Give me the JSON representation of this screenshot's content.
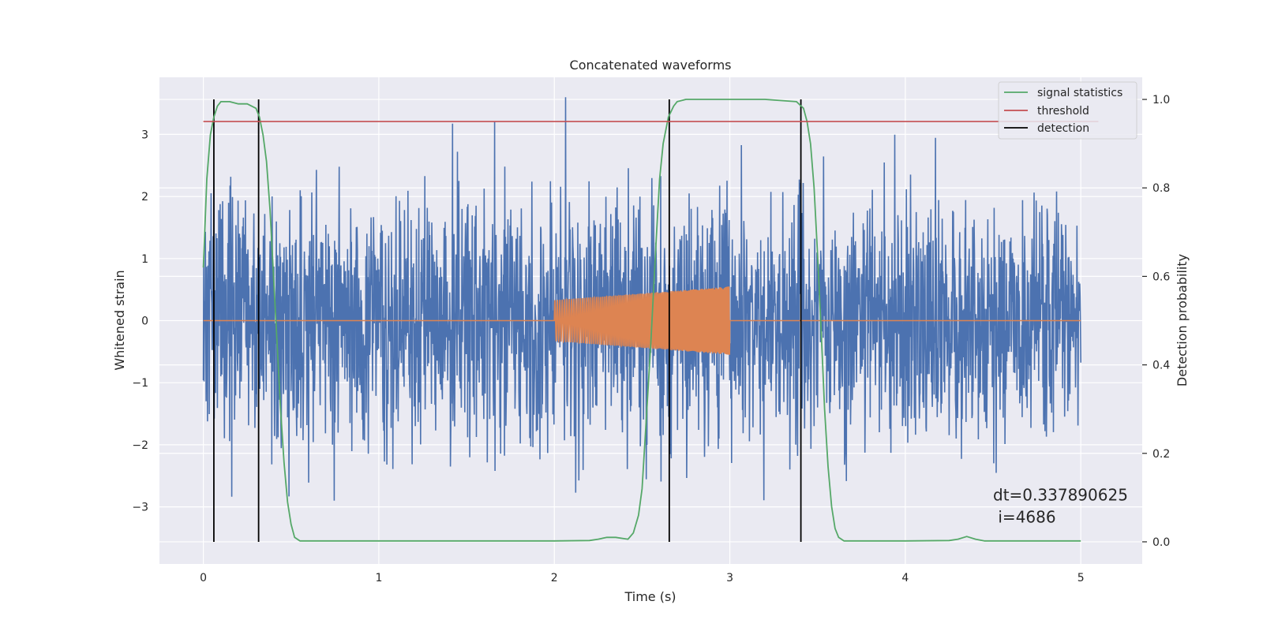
{
  "chart_data": {
    "type": "line",
    "title": "Concatenated waveforms",
    "xlabel": "Time (s)",
    "ylabel_left": "Whitened strain",
    "ylabel_right": "Detection probability",
    "xlim": [
      -0.25,
      5.35
    ],
    "ylim_left": [
      -3.92,
      3.92
    ],
    "ylim_right": [
      -0.05,
      1.05
    ],
    "xticks": [
      0,
      1,
      2,
      3,
      4,
      5
    ],
    "xtick_labels": [
      "0",
      "1",
      "2",
      "3",
      "4",
      "5"
    ],
    "yticks_left": [
      -3,
      -2,
      -1,
      0,
      1,
      2,
      3
    ],
    "ytick_labels_left": [
      "−3",
      "−2",
      "−1",
      "0",
      "1",
      "2",
      "3"
    ],
    "yticks_right": [
      0.0,
      0.2,
      0.4,
      0.6,
      0.8,
      1.0
    ],
    "ytick_labels_right": [
      "0.0",
      "0.2",
      "0.4",
      "0.6",
      "0.8",
      "1.0"
    ],
    "grid": true,
    "legend_position": "top-right",
    "legend": [
      {
        "label": "signal statistics",
        "color": "#55a868"
      },
      {
        "label": "threshold",
        "color": "#c44e52"
      },
      {
        "label": "detection",
        "color": "#000000"
      }
    ],
    "series": [
      {
        "kind": "noise",
        "axis": "left",
        "color": "#4c72b0",
        "x_range": [
          0,
          5
        ],
        "typical_amplitude": 1.3,
        "max_abs": 3.6
      },
      {
        "kind": "injection",
        "axis": "left",
        "color": "#dd8452",
        "baseline": 0,
        "x_range": [
          0,
          5
        ],
        "burst_x_range": [
          2.0,
          3.0
        ],
        "burst_amplitude_start": 0.33,
        "burst_amplitude_end": 0.55
      },
      {
        "name": "signal statistics",
        "axis": "right",
        "color": "#55a868",
        "x": [
          0,
          0.02,
          0.04,
          0.06,
          0.08,
          0.1,
          0.15,
          0.2,
          0.25,
          0.3,
          0.32,
          0.34,
          0.36,
          0.38,
          0.4,
          0.42,
          0.44,
          0.46,
          0.48,
          0.5,
          0.52,
          0.55,
          1.0,
          1.5,
          2.0,
          2.2,
          2.25,
          2.3,
          2.35,
          2.4,
          2.42,
          2.45,
          2.48,
          2.5,
          2.52,
          2.55,
          2.58,
          2.6,
          2.62,
          2.65,
          2.68,
          2.7,
          2.75,
          2.8,
          2.9,
          3.0,
          3.2,
          3.38,
          3.42,
          3.44,
          3.46,
          3.48,
          3.5,
          3.52,
          3.54,
          3.56,
          3.58,
          3.6,
          3.62,
          3.65,
          3.7,
          4.0,
          4.25,
          4.3,
          4.35,
          4.4,
          4.45,
          4.5,
          5.0
        ],
        "y": [
          0.62,
          0.82,
          0.92,
          0.96,
          0.985,
          0.995,
          0.995,
          0.99,
          0.99,
          0.98,
          0.96,
          0.92,
          0.86,
          0.75,
          0.6,
          0.45,
          0.3,
          0.18,
          0.09,
          0.04,
          0.01,
          0.002,
          0.002,
          0.002,
          0.002,
          0.003,
          0.006,
          0.01,
          0.01,
          0.007,
          0.006,
          0.02,
          0.06,
          0.12,
          0.25,
          0.45,
          0.68,
          0.82,
          0.9,
          0.96,
          0.985,
          0.995,
          1.0,
          1.0,
          1.0,
          1.0,
          1.0,
          0.995,
          0.98,
          0.95,
          0.9,
          0.8,
          0.65,
          0.48,
          0.3,
          0.17,
          0.08,
          0.03,
          0.01,
          0.002,
          0.002,
          0.002,
          0.003,
          0.006,
          0.012,
          0.006,
          0.002,
          0.002,
          0.002
        ]
      },
      {
        "name": "threshold",
        "axis": "right",
        "color": "#c44e52",
        "x": [
          0,
          5.1
        ],
        "y": [
          0.95,
          0.95
        ]
      }
    ],
    "detections": [
      0.06,
      0.315,
      2.655,
      3.405
    ],
    "detection_range": [
      0.0,
      1.0
    ],
    "annotation": {
      "line1": "dt=0.337890625",
      "line2": " i=4686",
      "x": 4.5,
      "y": -3.0
    }
  }
}
